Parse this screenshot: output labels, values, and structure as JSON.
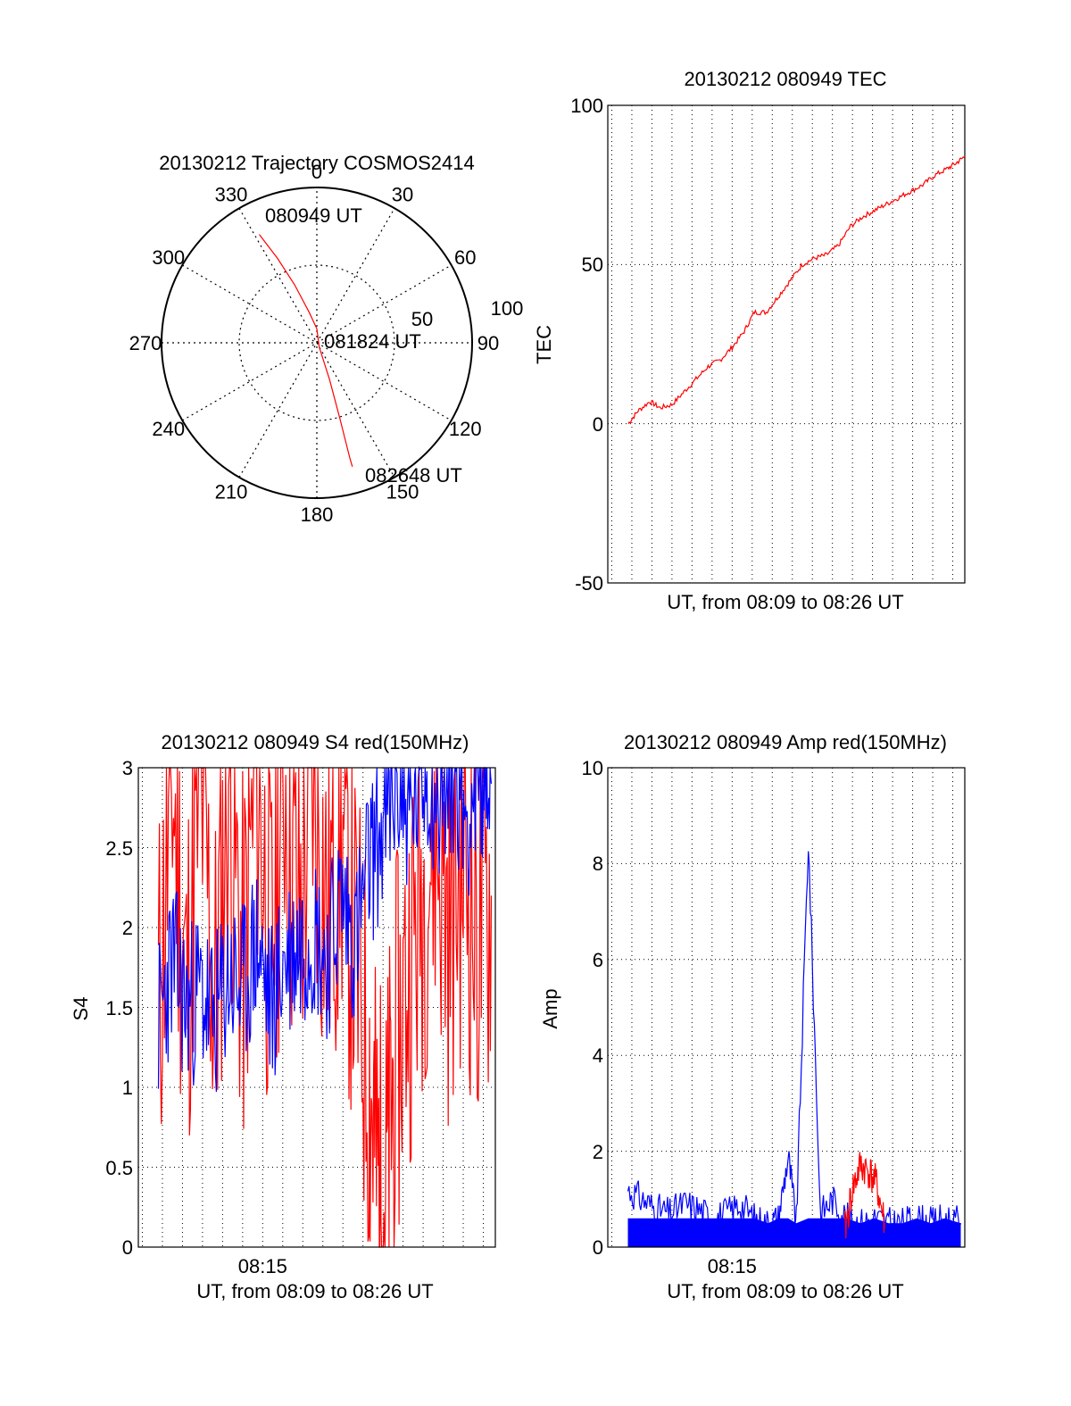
{
  "colors": {
    "red": "#ff0000",
    "blue": "#0000ff",
    "axis": "#000000",
    "grid": "#000000",
    "background": "#ffffff"
  },
  "chart_data": [
    {
      "type": "polar",
      "title": "20130212 Trajectory COSMOS2414",
      "azimuth_labels": [
        "0",
        "30",
        "60",
        "90",
        "120",
        "150",
        "180",
        "210",
        "240",
        "270",
        "300",
        "330"
      ],
      "radial_tick_labels": [
        "50",
        "100"
      ],
      "rlim": [
        0,
        100
      ],
      "grid": true,
      "series": [
        {
          "color": "red",
          "points_az_zenith": [
            [
              332,
              79
            ],
            [
              335,
              60
            ],
            [
              339,
              40
            ],
            [
              346,
              20
            ],
            [
              0,
              9
            ],
            [
              150,
              3
            ],
            [
              161,
              25
            ],
            [
              163,
              50
            ],
            [
              164,
              77
            ],
            [
              164,
              83
            ]
          ]
        }
      ],
      "annotations": [
        {
          "text": "080949 UT",
          "az": 336,
          "r": 80
        },
        {
          "text": "081824 UT",
          "az": 90,
          "r": 5
        },
        {
          "text": "082648 UT",
          "az": 162,
          "r": 85
        }
      ]
    },
    {
      "type": "line",
      "title": "20130212 080949 TEC",
      "ylabel": "TEC",
      "xlabel": "UT, from 08:09 to 08:26 UT",
      "ylim": [
        -50,
        100
      ],
      "yticks": [
        "100",
        "50",
        "0",
        "-50"
      ],
      "xlim_minutes": [
        8.8,
        26.6
      ],
      "grid": true,
      "series": [
        {
          "color": "red",
          "x_minutes": [
            9.82,
            10.3,
            10.9,
            11.4,
            12.0,
            12.6,
            13.2,
            13.8,
            14.4,
            15.0,
            15.6,
            16.1,
            16.7,
            17.3,
            17.9,
            18.5,
            19.1,
            19.7,
            20.3,
            20.9,
            21.5,
            22.1,
            22.7,
            23.3,
            23.9,
            24.5,
            25.1,
            25.7,
            26.2,
            26.6
          ],
          "values": [
            0,
            4,
            7,
            5,
            6,
            10,
            14,
            18,
            20,
            24,
            29,
            35,
            35,
            40,
            45,
            50,
            52,
            53,
            56,
            62,
            65,
            67,
            69,
            71,
            73,
            75,
            78,
            80,
            82,
            84
          ]
        }
      ]
    },
    {
      "type": "line",
      "title": "20130212 080949 S4 red(150MHz)",
      "ylabel": "S4",
      "xlabel": "UT, from 08:09 to 08:26 UT",
      "ylim": [
        0,
        3
      ],
      "yticks": [
        "3",
        "2.5",
        "2",
        "1.5",
        "1",
        "0.5",
        "0"
      ],
      "xtick_label": "08:15",
      "xtick_minutes": 15,
      "xlim_minutes": [
        8.8,
        26.6
      ],
      "grid": true,
      "series": [
        {
          "color": "red",
          "x_minutes": [
            9.8,
            10.5,
            11.2,
            11.9,
            12.6,
            13.3,
            14.0,
            14.7,
            15.4,
            16.1,
            16.8,
            17.5,
            18.2,
            18.9,
            19.6,
            20.3,
            20.7,
            21.1,
            21.5,
            22.2,
            22.9,
            23.6,
            24.3,
            25.0,
            25.7,
            26.4
          ],
          "values": [
            1.5,
            2.9,
            1.6,
            3.0,
            1.5,
            3.0,
            1.7,
            3.0,
            1.8,
            3.0,
            2.0,
            3.0,
            2.1,
            2.6,
            1.8,
            1.1,
            0.5,
            0.3,
            1.0,
            1.7,
            2.2,
            2.6,
            2.0,
            2.5,
            1.9,
            2.2
          ]
        },
        {
          "color": "blue",
          "x_minutes": [
            9.8,
            10.5,
            11.2,
            11.9,
            12.6,
            13.3,
            14.0,
            14.7,
            15.4,
            16.1,
            16.8,
            17.5,
            18.2,
            18.9,
            19.6,
            20.3,
            21.0,
            21.7,
            22.4,
            23.1,
            23.8,
            24.5,
            25.2,
            25.9,
            26.4
          ],
          "values": [
            1.4,
            1.8,
            1.5,
            1.6,
            1.4,
            1.7,
            1.6,
            1.9,
            1.5,
            1.8,
            1.9,
            2.0,
            1.8,
            2.2,
            1.9,
            2.4,
            2.6,
            2.9,
            2.7,
            3.0,
            2.8,
            3.0,
            2.7,
            3.0,
            2.9
          ]
        }
      ]
    },
    {
      "type": "line",
      "title": "20130212 080949 Amp red(150MHz)",
      "ylabel": "Amp",
      "xlabel": "UT, from 08:09 to 08:26 UT",
      "ylim": [
        0,
        10
      ],
      "yticks": [
        "10",
        "8",
        "6",
        "4",
        "2",
        "0"
      ],
      "xtick_label": "08:15",
      "xtick_minutes": 15,
      "xlim_minutes": [
        8.8,
        26.6
      ],
      "grid": true,
      "series": [
        {
          "color": "blue",
          "x_minutes": [
            9.8,
            10.5,
            11.2,
            11.9,
            12.6,
            13.3,
            14.0,
            14.7,
            15.4,
            16.1,
            16.8,
            17.3,
            17.8,
            18.2,
            18.8,
            19.4,
            20.0,
            20.7,
            21.4,
            22.1,
            22.8,
            23.5,
            24.2,
            24.9,
            25.6,
            26.4
          ],
          "values": [
            1.2,
            1.0,
            0.8,
            0.7,
            0.9,
            0.8,
            0.6,
            0.7,
            0.9,
            0.6,
            0.5,
            0.6,
            1.9,
            0.5,
            8.5,
            0.7,
            1.0,
            0.6,
            0.5,
            0.6,
            0.5,
            0.5,
            0.6,
            0.5,
            0.6,
            0.5
          ]
        },
        {
          "color": "red",
          "x_minutes": [
            20.6,
            21.0,
            21.4,
            21.8,
            22.2,
            22.6
          ],
          "values": [
            0.3,
            1.2,
            1.7,
            1.6,
            1.3,
            0.5
          ]
        }
      ]
    }
  ]
}
